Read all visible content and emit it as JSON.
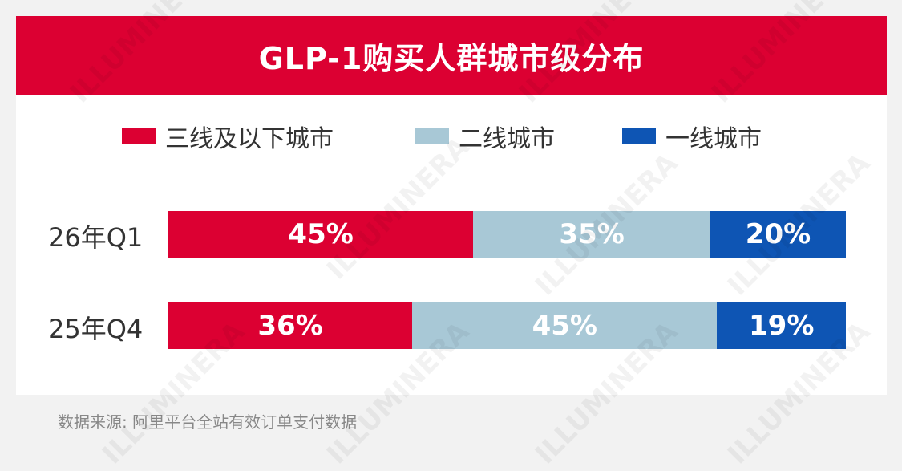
{
  "title": "GLP-1购买人群城市级分布",
  "legend": [
    {
      "label": "三线及以下城市",
      "color": "#dc0032"
    },
    {
      "label": "二线城市",
      "color": "#a8c8d6"
    },
    {
      "label": "一线城市",
      "color": "#0e55b4"
    }
  ],
  "chart_data": {
    "type": "bar",
    "orientation": "horizontal",
    "stacked": true,
    "categories": [
      "26年Q1",
      "25年Q4"
    ],
    "series": [
      {
        "name": "三线及以下城市",
        "values": [
          45,
          36
        ],
        "labels": [
          "45%",
          "36%"
        ]
      },
      {
        "name": "二线城市",
        "values": [
          35,
          45
        ],
        "labels": [
          "35%",
          "45%"
        ]
      },
      {
        "name": "一线城市",
        "values": [
          20,
          19
        ],
        "labels": [
          "20%",
          "19%"
        ]
      }
    ]
  },
  "source": "数据来源: 阿里平台全站有效订单支付数据",
  "watermark": "ILLUMINERA"
}
